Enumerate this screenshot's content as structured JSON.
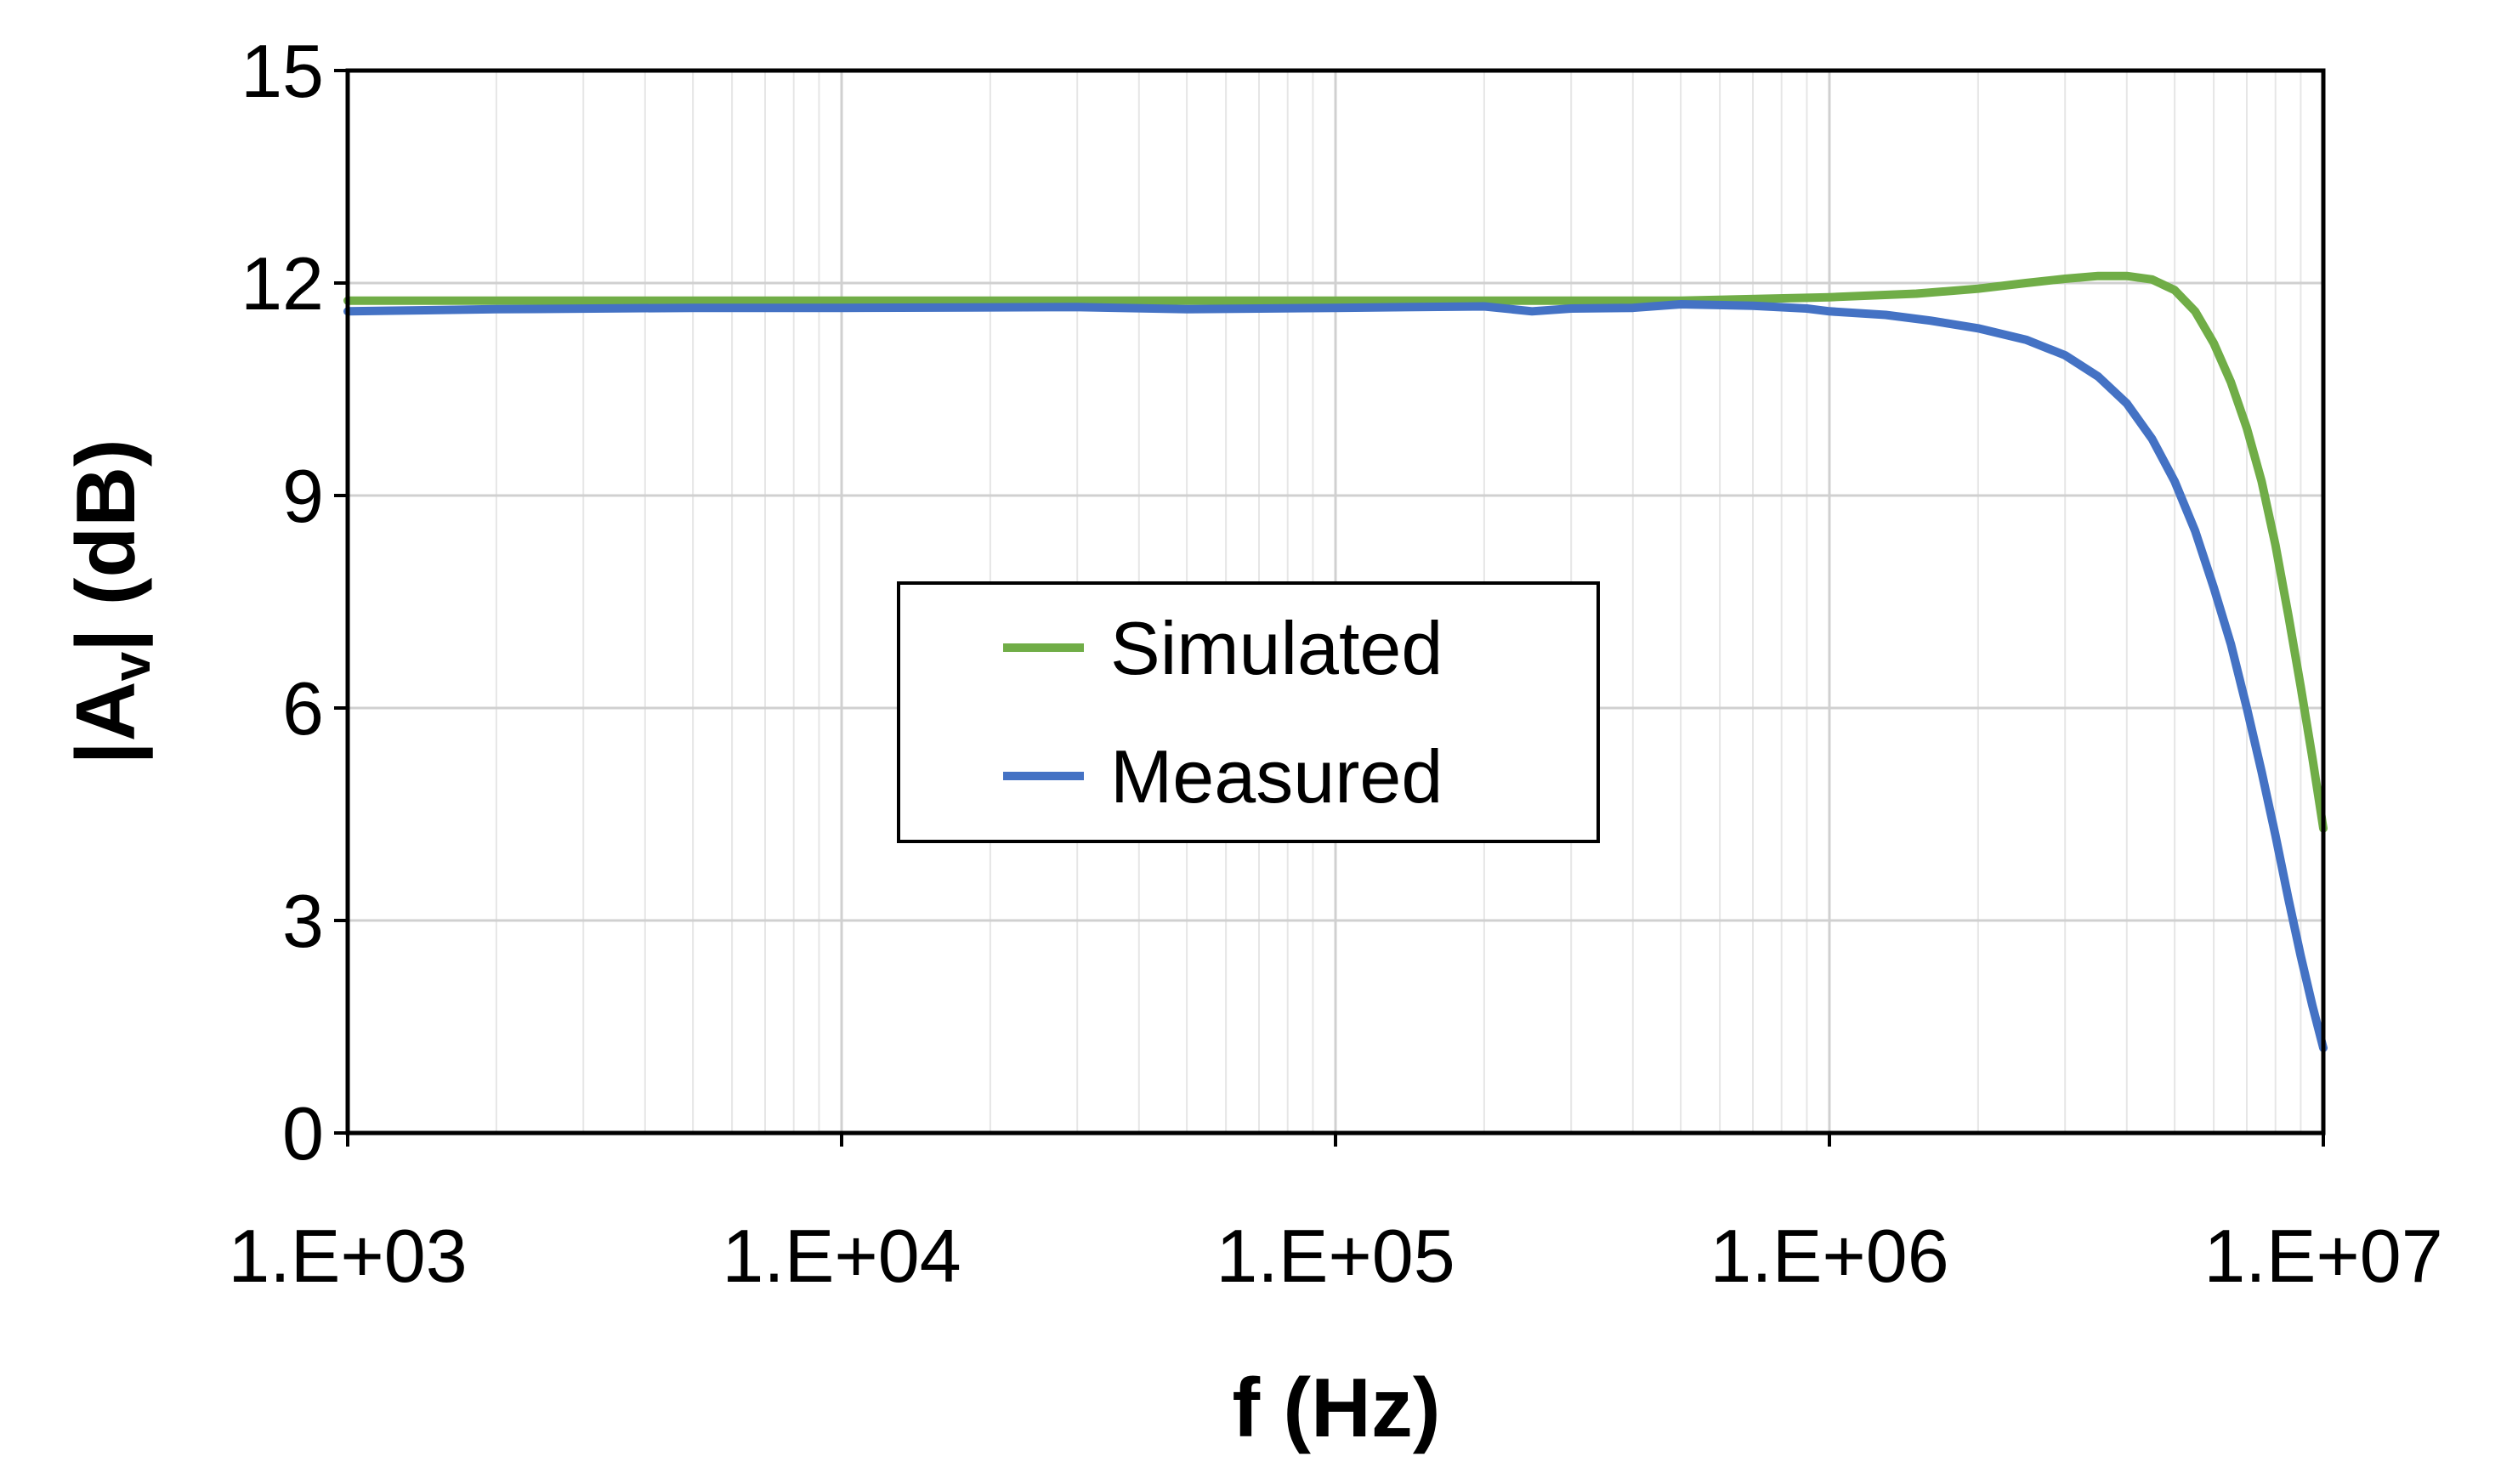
{
  "chart_data": {
    "type": "line",
    "xscale": "log",
    "xlim": [
      1000,
      10000000
    ],
    "ylim": [
      0,
      15
    ],
    "xticks": [
      1000,
      10000,
      100000,
      1000000,
      10000000
    ],
    "xtick_labels": [
      "1.E+03",
      "1.E+04",
      "1.E+05",
      "1.E+06",
      "1.E+07"
    ],
    "yticks": [
      0,
      3,
      6,
      9,
      12,
      15
    ],
    "ytick_labels": [
      "0",
      "3",
      "6",
      "9",
      "12",
      "15"
    ],
    "xlabel": "f (Hz)",
    "ylabel_main": "|A",
    "ylabel_sub": "v",
    "ylabel_end": "| (dB)",
    "grid": true,
    "legend_position": "center",
    "series": [
      {
        "name": "Simulated",
        "color": "#70ad47",
        "points": [
          [
            1000,
            11.75
          ],
          [
            10000,
            11.75
          ],
          [
            100000,
            11.75
          ],
          [
            500000,
            11.75
          ],
          [
            1000000,
            11.8
          ],
          [
            1500000,
            11.85
          ],
          [
            2000000,
            11.92
          ],
          [
            2500000,
            12.0
          ],
          [
            3000000,
            12.06
          ],
          [
            3500000,
            12.1
          ],
          [
            4000000,
            12.1
          ],
          [
            4500000,
            12.05
          ],
          [
            5000000,
            11.9
          ],
          [
            5500000,
            11.6
          ],
          [
            6000000,
            11.15
          ],
          [
            6500000,
            10.6
          ],
          [
            7000000,
            9.95
          ],
          [
            7500000,
            9.2
          ],
          [
            8000000,
            8.3
          ],
          [
            8500000,
            7.3
          ],
          [
            9000000,
            6.3
          ],
          [
            9500000,
            5.3
          ],
          [
            10000000,
            4.3
          ]
        ]
      },
      {
        "name": "Measured",
        "color": "#4472c4",
        "points": [
          [
            1000,
            11.6
          ],
          [
            2000,
            11.63
          ],
          [
            5000,
            11.65
          ],
          [
            10000,
            11.65
          ],
          [
            30000,
            11.66
          ],
          [
            50000,
            11.63
          ],
          [
            100000,
            11.65
          ],
          [
            200000,
            11.67
          ],
          [
            250000,
            11.6
          ],
          [
            300000,
            11.64
          ],
          [
            400000,
            11.65
          ],
          [
            500000,
            11.7
          ],
          [
            700000,
            11.68
          ],
          [
            900000,
            11.64
          ],
          [
            1000000,
            11.6
          ],
          [
            1300000,
            11.55
          ],
          [
            1600000,
            11.47
          ],
          [
            2000000,
            11.36
          ],
          [
            2500000,
            11.2
          ],
          [
            3000000,
            10.98
          ],
          [
            3500000,
            10.68
          ],
          [
            4000000,
            10.3
          ],
          [
            4500000,
            9.8
          ],
          [
            5000000,
            9.2
          ],
          [
            5500000,
            8.5
          ],
          [
            6000000,
            7.7
          ],
          [
            6500000,
            6.9
          ],
          [
            7000000,
            6.0
          ],
          [
            7500000,
            5.1
          ],
          [
            8000000,
            4.2
          ],
          [
            8500000,
            3.3
          ],
          [
            9000000,
            2.5
          ],
          [
            9500000,
            1.8
          ],
          [
            10000000,
            1.2
          ]
        ]
      }
    ]
  }
}
